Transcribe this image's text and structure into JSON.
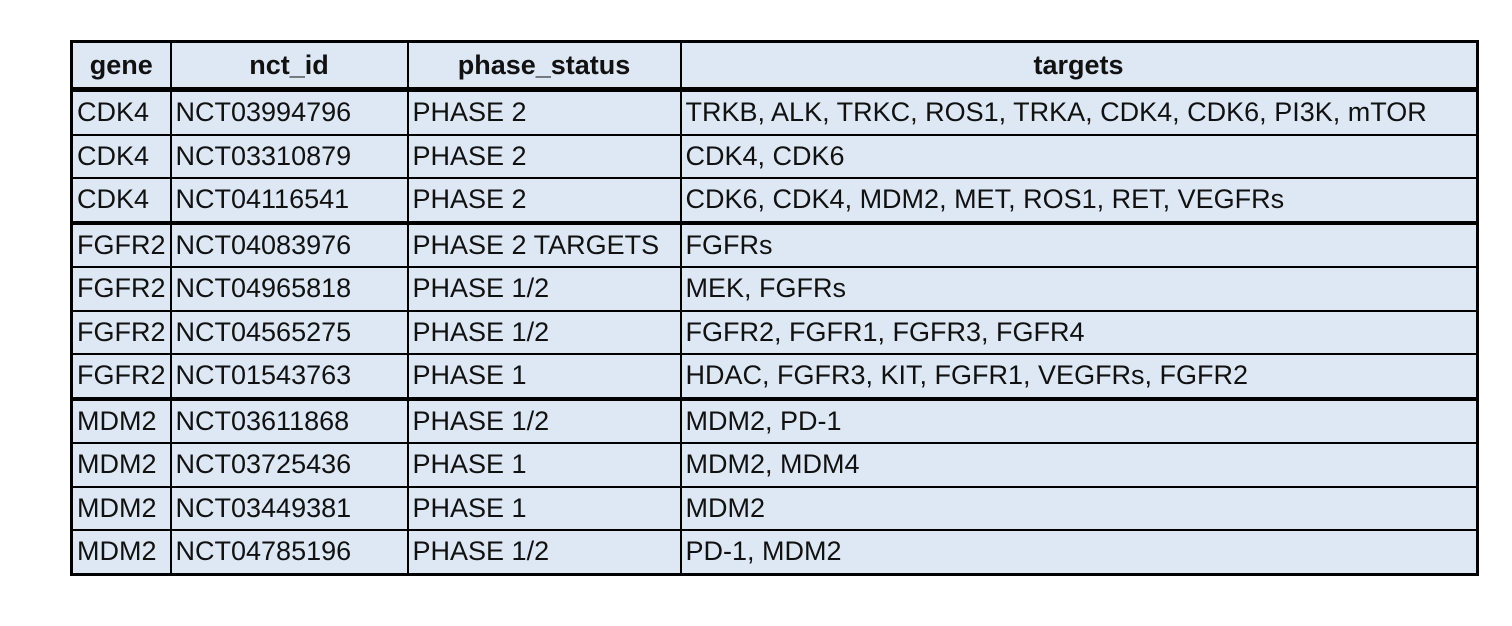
{
  "table": {
    "headers": [
      "gene",
      "nct_id",
      "phase_status",
      "targets"
    ],
    "rows": [
      [
        "CDK4",
        "NCT03994796",
        "PHASE 2",
        "TRKB, ALK, TRKC, ROS1, TRKA, CDK4, CDK6, PI3K, mTOR"
      ],
      [
        "CDK4",
        "NCT03310879",
        "PHASE 2",
        "CDK4, CDK6"
      ],
      [
        "CDK4",
        "NCT04116541",
        "PHASE 2",
        "CDK6, CDK4, MDM2, MET, ROS1, RET, VEGFRs"
      ],
      [
        "FGFR2",
        "NCT04083976",
        "PHASE 2 TARGETS",
        "FGFRs"
      ],
      [
        "FGFR2",
        "NCT04965818",
        "PHASE 1/2",
        "MEK, FGFRs"
      ],
      [
        "FGFR2",
        "NCT04565275",
        "PHASE 1/2",
        "FGFR2, FGFR1, FGFR3, FGFR4"
      ],
      [
        "FGFR2",
        "NCT01543763",
        "PHASE 1",
        "HDAC, FGFR3, KIT, FGFR1, VEGFRs, FGFR2"
      ],
      [
        "MDM2",
        "NCT03611868",
        "PHASE 1/2",
        "MDM2, PD-1"
      ],
      [
        "MDM2",
        "NCT03725436",
        "PHASE 1",
        "MDM2, MDM4"
      ],
      [
        "MDM2",
        "NCT03449381",
        "PHASE 1",
        "MDM2"
      ],
      [
        "MDM2",
        "NCT04785196",
        "PHASE 1/2",
        "PD-1, MDM2"
      ]
    ]
  },
  "colors": {
    "cell_background": "#dde8f4",
    "border": "#000000"
  }
}
